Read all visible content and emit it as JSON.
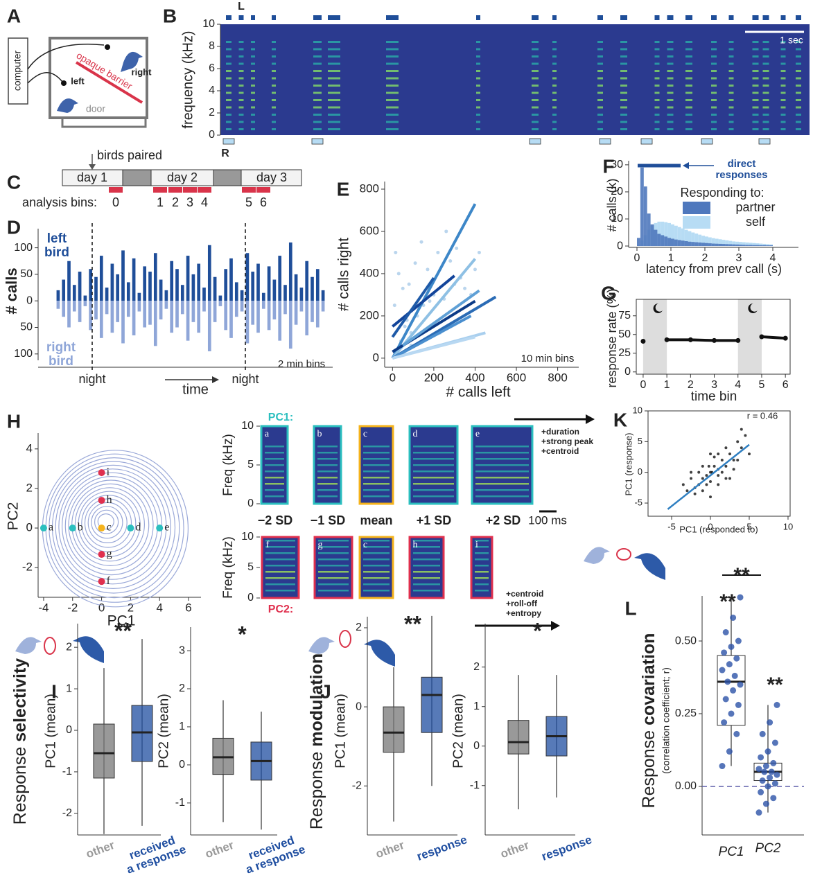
{
  "panel_labels": [
    "A",
    "B",
    "C",
    "D",
    "E",
    "F",
    "G",
    "H",
    "I",
    "J",
    "K",
    "L"
  ],
  "panels": {
    "A": {
      "computer": "computer",
      "left": "left",
      "right": "right",
      "barrier": "opaque barrier",
      "door": "door"
    },
    "B": {
      "ylabel": "frequency (kHz)",
      "ylim": [
        0,
        10
      ],
      "yticks": [
        0,
        2,
        4,
        6,
        8,
        10
      ],
      "top_label": "L",
      "bottom_label": "R",
      "scale_bar": "1 sec"
    },
    "C": {
      "annotation": "birds paired",
      "days": [
        "day 1",
        "day 2",
        "day 3"
      ],
      "bins_label": "analysis bins:",
      "bins": [
        0,
        1,
        2,
        3,
        4,
        5,
        6
      ]
    },
    "D": {
      "ylabel": "# calls",
      "ylim": [
        -112,
        136
      ],
      "yticks": [
        {
          "value": 100,
          "label": "100"
        },
        {
          "value": 50,
          "label": "50"
        },
        0,
        {
          "value": -50,
          "label": "50"
        },
        {
          "value": -100,
          "label": "100"
        }
      ],
      "series": [
        {
          "name": "left bird",
          "color": "#1f4e99",
          "values": [
            20,
            40,
            75,
            30,
            55,
            10,
            60,
            45,
            85,
            25,
            70,
            50,
            95,
            35,
            80,
            15,
            65,
            55,
            90,
            40,
            20,
            75,
            60,
            30,
            85,
            50,
            70,
            25,
            105,
            45,
            10,
            60,
            80,
            35,
            20,
            90,
            55,
            70,
            15,
            65,
            40,
            85,
            30,
            110,
            50,
            25,
            75,
            45,
            60,
            20
          ]
        },
        {
          "name": "right bird",
          "color": "#8fa6d8",
          "values": [
            -15,
            -30,
            -50,
            -20,
            -40,
            -10,
            -55,
            -35,
            -70,
            -25,
            -60,
            -40,
            -80,
            -30,
            -65,
            -20,
            -50,
            -45,
            -85,
            -35,
            -15,
            -60,
            -50,
            -25,
            -75,
            -40,
            -60,
            -20,
            -95,
            -40,
            -10,
            -55,
            -70,
            -30,
            -20,
            -80,
            -45,
            -60,
            -15,
            -55,
            -35,
            -75,
            -25,
            -90,
            -45,
            -20,
            -65,
            -40,
            -50,
            -20
          ]
        }
      ],
      "note": "2 min bins",
      "xlabel": "time",
      "night_labels": [
        "night",
        "night"
      ]
    },
    "E": {
      "xlabel": "# calls left",
      "ylabel": "# calls right",
      "note": "10 min bins",
      "xlim": [
        -38,
        902
      ],
      "ylim": [
        -43,
        836
      ],
      "xticks": [
        0,
        200,
        400,
        600,
        800
      ],
      "yticks": [
        0,
        200,
        400,
        600,
        800
      ],
      "points": {
        "color": "#9cc3e6",
        "x": [
          20,
          40,
          60,
          90,
          120,
          150,
          200,
          250,
          300,
          350,
          30,
          80,
          110,
          170,
          220,
          280,
          330,
          400,
          10,
          50,
          140,
          260,
          180,
          310,
          70,
          380,
          420,
          90,
          230,
          15
        ],
        "y": [
          30,
          80,
          150,
          120,
          200,
          250,
          300,
          280,
          350,
          330,
          400,
          350,
          450,
          420,
          500,
          460,
          380,
          420,
          250,
          330,
          550,
          600,
          270,
          520,
          180,
          300,
          500,
          60,
          120,
          500
        ]
      },
      "lines": [
        {
          "color": "#3d87c8",
          "x": [
            0,
            400
          ],
          "y": [
            0,
            730
          ]
        },
        {
          "color": "#8ec0e4",
          "x": [
            0,
            400
          ],
          "y": [
            0,
            470
          ]
        },
        {
          "color": "#12449a",
          "x": [
            0,
            300
          ],
          "y": [
            150,
            390
          ]
        },
        {
          "color": "#2a6bb5",
          "x": [
            0,
            500
          ],
          "y": [
            0,
            290
          ]
        },
        {
          "color": "#0c3b87",
          "x": [
            0,
            400
          ],
          "y": [
            30,
            270
          ]
        },
        {
          "color": "#5fa0d6",
          "x": [
            50,
            420
          ],
          "y": [
            60,
            320
          ]
        },
        {
          "color": "#a9cfee",
          "x": [
            0,
            450
          ],
          "y": [
            0,
            120
          ]
        },
        {
          "color": "#4a8fcf",
          "x": [
            0,
            380
          ],
          "y": [
            0,
            200
          ]
        },
        {
          "color": "#1e5aa8",
          "x": [
            0,
            200
          ],
          "y": [
            100,
            380
          ]
        },
        {
          "color": "#b8d8f2",
          "x": [
            0,
            400
          ],
          "y": [
            0,
            100
          ]
        }
      ]
    },
    "F": {
      "xlabel": "latency from prev call (s)",
      "ylabel": "# calls (k)",
      "annotation": "direct responses",
      "legend_title": "Responding to:",
      "xlim": [
        -0.245,
        4.755
      ],
      "ylim": [
        -0.5,
        31.5
      ],
      "xticks": [
        0,
        1,
        2,
        3,
        4
      ],
      "yticks": [
        0,
        10,
        20,
        30
      ],
      "bins": [
        0,
        0.1,
        0.2,
        0.3,
        0.4,
        0.5,
        0.6,
        0.7,
        0.8,
        0.9,
        1,
        1.1,
        1.2,
        1.3,
        1.4,
        1.5,
        1.6,
        1.7,
        1.8,
        1.9,
        2,
        2.1,
        2.2,
        2.3,
        2.4,
        2.5,
        2.6,
        2.7,
        2.8,
        2.9,
        3,
        3.1,
        3.2,
        3.3,
        3.4,
        3.5,
        3.6,
        3.7,
        3.8,
        3.9,
        4
      ],
      "series": [
        {
          "name": "self",
          "color": "#b7dcf4",
          "values": [
            0.5,
            2,
            4,
            6,
            7.5,
            8.5,
            9,
            9,
            8.8,
            8.5,
            8,
            7.5,
            7,
            6.5,
            6,
            5.5,
            5,
            4.6,
            4.2,
            3.8,
            3.5,
            3.2,
            2.9,
            2.7,
            2.5,
            2.3,
            2.1,
            1.9,
            1.7,
            1.6,
            1.5,
            1.4,
            1.3,
            1.2,
            1.1,
            1,
            0.9,
            0.8,
            0.7,
            0.6
          ]
        },
        {
          "name": "partner",
          "color": "#4f78bd",
          "values": [
            3,
            29,
            22,
            12,
            8,
            6,
            4.5,
            4,
            3.5,
            3,
            2.7,
            2.4,
            2.2,
            2,
            1.8,
            1.6,
            1.5,
            1.4,
            1.3,
            1.2,
            1.1,
            1,
            0.9,
            0.85,
            0.8,
            0.75,
            0.7,
            0.65,
            0.6,
            0.55,
            0.5,
            0.45,
            0.4,
            0.4,
            0.35,
            0.35,
            0.3,
            0.3,
            0.25,
            0.25
          ]
        }
      ]
    },
    "G": {
      "ylabel": "response rate (%)",
      "xlabel": "time bin",
      "xlim": [
        -0.29,
        6.2
      ],
      "ylim": [
        -3,
        97
      ],
      "xticks": [
        0,
        1,
        2,
        3,
        4,
        5,
        6
      ],
      "yticks": [
        0,
        25,
        50,
        75
      ],
      "x": [
        0,
        1,
        2,
        3,
        4,
        5,
        6
      ],
      "values": [
        41,
        43,
        43,
        42,
        42,
        47,
        45
      ],
      "night_spans": [
        [
          0,
          1
        ],
        [
          4,
          5
        ]
      ]
    },
    "H": {
      "xlabel": "PC1",
      "ylabel": "PC2",
      "xlim": [
        -4.38,
        6.86
      ],
      "ylim": [
        -3.5,
        4.8
      ],
      "xticks": [
        -4,
        -2,
        0,
        2,
        4,
        6
      ],
      "yticks": [
        -2,
        0,
        2,
        4
      ],
      "points": [
        {
          "label": "a",
          "x": -4,
          "y": 0,
          "color": "#2bbfbf"
        },
        {
          "label": "b",
          "x": -2,
          "y": 0,
          "color": "#2bbfbf"
        },
        {
          "label": "c",
          "x": 0,
          "y": 0,
          "color": "#f5b31c"
        },
        {
          "label": "d",
          "x": 2,
          "y": 0,
          "color": "#2bbfbf"
        },
        {
          "label": "e",
          "x": 4,
          "y": 0,
          "color": "#2bbfbf"
        },
        {
          "label": "i",
          "x": 0,
          "y": 2.8,
          "color": "#e0304e"
        },
        {
          "label": "h",
          "x": 0,
          "y": 1.4,
          "color": "#e0304e"
        },
        {
          "label": "g",
          "x": 0,
          "y": -1.33,
          "color": "#e0304e"
        },
        {
          "label": "f",
          "x": 0,
          "y": -2.7,
          "color": "#e0304e"
        }
      ]
    },
    "H2": {
      "pc1_label": "PC1:",
      "pc2_label": "PC2:",
      "ylabel": "Freq (kHz)",
      "yticks": [
        0,
        5,
        10
      ],
      "pc1_panels": [
        "a",
        "b",
        "c",
        "d",
        "e"
      ],
      "pc2_panels": [
        "f",
        "g",
        "c",
        "h",
        "i"
      ],
      "sd_labels": [
        "−2 SD",
        "−1 SD",
        "mean",
        "+1 SD",
        "+2 SD"
      ],
      "scale_bar": "100 ms",
      "pc1_features": [
        "+duration",
        "+strong peak",
        "+centroid"
      ],
      "pc2_features": [
        "+centroid",
        "+roll-off",
        "+entropy"
      ]
    },
    "K": {
      "xlabel": "PC1 (responded to)",
      "ylabel": "PC1 (response)",
      "r_label": "r = 0.46",
      "xlim": [
        -8.04,
        10.27
      ],
      "ylim": [
        -7.14,
        10
      ],
      "xticks": [
        -5,
        0,
        5,
        10
      ],
      "yticks": [
        -5,
        0,
        5,
        10
      ],
      "points": {
        "x": [
          -3,
          -2.5,
          -2,
          -1.5,
          -1,
          -0.5,
          0,
          0.5,
          1,
          1.5,
          2,
          2.5,
          3,
          3.5,
          4,
          -1,
          0,
          1,
          -2,
          2,
          0.5,
          -0.5,
          1.5,
          -1.5,
          3,
          4.5,
          5,
          -3.5,
          0,
          1,
          2,
          -1,
          0.2,
          -0.2,
          2.5,
          3.5,
          4,
          1,
          0,
          -2.5
        ],
        "y": [
          -3,
          -1,
          -2.5,
          0,
          -1,
          -2,
          0,
          1,
          -0.5,
          2,
          1,
          3,
          2,
          5,
          4,
          1,
          -1.5,
          0.5,
          -3.5,
          -1,
          2.5,
          -0.5,
          0,
          -2,
          0.5,
          6,
          3,
          -2,
          3,
          -2,
          4,
          -3,
          0,
          1,
          -1,
          2,
          7,
          3,
          -4,
          0
        ]
      },
      "fit": {
        "x": [
          -5.5,
          5
        ],
        "y": [
          -6,
          4.5
        ]
      }
    },
    "I": {
      "title_prefix": "Response ",
      "title_bold": "selectivity",
      "plots": [
        {
          "ylabel": "PC1 (mean)",
          "sig": "**",
          "ylim": [
            -2.52,
            2.57
          ],
          "yticks": [
            -2,
            -1,
            0,
            1,
            2
          ],
          "categories": [
            "other",
            "received a response"
          ],
          "boxes": [
            {
              "color": "#777777",
              "whislo": -2.5,
              "q1": -1.15,
              "med": -0.55,
              "q3": 0.15,
              "whishi": 1.5
            },
            {
              "color": "#1f4ea0",
              "whislo": -2.3,
              "q1": -0.75,
              "med": -0.05,
              "q3": 0.6,
              "whishi": 2.2
            }
          ]
        },
        {
          "ylabel": "PC2 (mean)",
          "sig": "*",
          "ylim": [
            -1.84,
            3.62
          ],
          "yticks": [
            -1,
            0,
            1,
            2,
            3
          ],
          "categories": [
            "other",
            "received a response"
          ],
          "boxes": [
            {
              "color": "#777777",
              "whislo": -1.5,
              "q1": -0.25,
              "med": 0.2,
              "q3": 0.7,
              "whishi": 1.7
            },
            {
              "color": "#1f4ea0",
              "whislo": -1.7,
              "q1": -0.4,
              "med": 0.1,
              "q3": 0.6,
              "whishi": 1.4
            }
          ]
        }
      ]
    },
    "J": {
      "title_prefix": "Response ",
      "title_bold": "modulation",
      "plots": [
        {
          "ylabel": "PC1 (mean)",
          "sig": "**",
          "ylim": [
            -3.24,
            2.28
          ],
          "yticks": [
            -2,
            0,
            2
          ],
          "categories": [
            "other",
            "response"
          ],
          "boxes": [
            {
              "color": "#777777",
              "whislo": -2.9,
              "q1": -1.15,
              "med": -0.65,
              "q3": 0,
              "whishi": 1.0
            },
            {
              "color": "#1f4ea0",
              "whislo": -2.0,
              "q1": -0.65,
              "med": 0.3,
              "q3": 0.75,
              "whishi": 2.3
            }
          ]
        },
        {
          "ylabel": "PC2 (mean)",
          "sig": "*",
          "ylim": [
            -2.25,
            3.1
          ],
          "yticks": [
            -1,
            0,
            1,
            2
          ],
          "categories": [
            "other",
            "response"
          ],
          "boxes": [
            {
              "color": "#777777",
              "whislo": -1.6,
              "q1": -0.2,
              "med": 0.1,
              "q3": 0.65,
              "whishi": 1.8
            },
            {
              "color": "#1f4ea0",
              "whislo": -1.3,
              "q1": -0.25,
              "med": 0.25,
              "q3": 0.75,
              "whishi": 1.8
            }
          ]
        }
      ]
    },
    "L": {
      "ylabel_prefix": "Response ",
      "ylabel_bold": "covariation",
      "ylabel_sub": "(correlation coefficient; r)",
      "ylim": [
        -0.167,
        0.655
      ],
      "yticks": [
        {
          "value": 0,
          "label": "0.00"
        },
        0.25,
        {
          "value": 0.5,
          "label": "0.50"
        }
      ],
      "categories": [
        "PC1",
        "PC2"
      ],
      "sig": [
        "**",
        "**",
        "**"
      ],
      "boxes": [
        {
          "color": "#2c52a8",
          "whislo": 0.07,
          "q1": 0.21,
          "med": 0.36,
          "q3": 0.45,
          "whishi": 0.65
        },
        {
          "color": "#2c52a8",
          "whislo": -0.09,
          "q1": 0.02,
          "med": 0.05,
          "q3": 0.08,
          "whishi": 0.28
        }
      ],
      "points": [
        [
          0.07,
          0.12,
          0.18,
          0.22,
          0.25,
          0.28,
          0.3,
          0.33,
          0.35,
          0.36,
          0.38,
          0.4,
          0.42,
          0.44,
          0.46,
          0.48,
          0.5,
          0.53,
          0.58,
          0.65
        ],
        [
          -0.09,
          -0.06,
          -0.04,
          -0.02,
          0,
          0.01,
          0.02,
          0.03,
          0.04,
          0.05,
          0.05,
          0.06,
          0.07,
          0.08,
          0.1,
          0.12,
          0.15,
          0.18,
          0.22,
          0.28
        ]
      ]
    }
  }
}
